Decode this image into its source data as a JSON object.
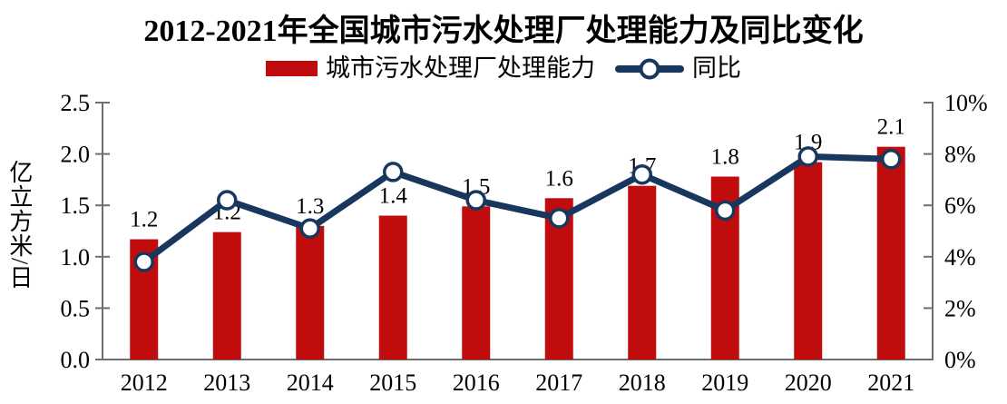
{
  "chart_data": {
    "type": "bar+line",
    "title": "2012-2021年全国城市污水处理厂处理能力及同比变化",
    "categories": [
      "2012",
      "2013",
      "2014",
      "2015",
      "2016",
      "2017",
      "2018",
      "2019",
      "2020",
      "2021"
    ],
    "series": [
      {
        "name": "城市污水处理厂处理能力",
        "type": "bar",
        "axis": "left",
        "unit": "亿立方米/日",
        "values": [
          1.17,
          1.24,
          1.3,
          1.4,
          1.49,
          1.57,
          1.69,
          1.78,
          1.92,
          2.07
        ],
        "labels": [
          "1.2",
          "1.2",
          "1.3",
          "1.4",
          "1.5",
          "1.6",
          "1.7",
          "1.8",
          "1.9",
          "2.1"
        ],
        "color": "#C00C0C"
      },
      {
        "name": "同比",
        "type": "line",
        "axis": "right",
        "values_percent": [
          3.8,
          6.2,
          5.1,
          7.3,
          6.2,
          5.5,
          7.2,
          5.8,
          7.9,
          7.8
        ],
        "color": "#17375E",
        "marker": "white-circle"
      }
    ],
    "left_axis": {
      "label": "亿立方米/日",
      "ticks": [
        "0.0",
        "0.5",
        "1.0",
        "1.5",
        "2.0",
        "2.5"
      ],
      "min": 0,
      "max": 2.5
    },
    "right_axis": {
      "ticks": [
        "0%",
        "2%",
        "4%",
        "6%",
        "8%",
        "10%"
      ],
      "min": 0,
      "max": 10
    },
    "axis_color": "#6E6E6E",
    "legend_position": "top",
    "grid": false
  }
}
